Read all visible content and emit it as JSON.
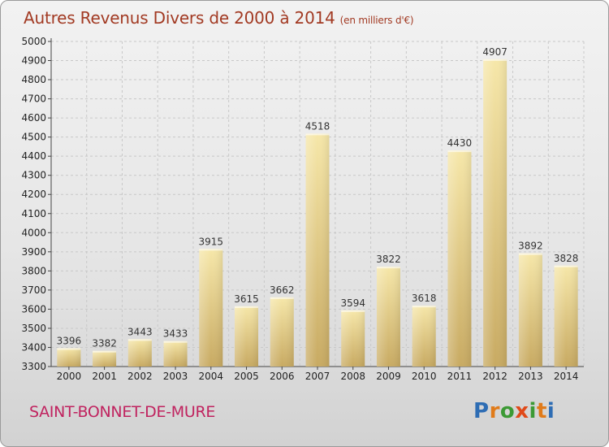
{
  "title": "Autres Revenus Divers de 2000 à 2014",
  "title_unit": "(en milliers d'€)",
  "commune": "SAINT-BONNET-DE-MURE",
  "brand": {
    "text": "Proxiti",
    "colors": [
      "#2e6db4",
      "#e07b1a",
      "#3c9a35",
      "#e04a1a",
      "#3c9a35",
      "#e07b1a",
      "#2e6db4"
    ]
  },
  "colors": {
    "bar_light": "#f6e7a9",
    "bar_dark": "#c8aa62",
    "title": "#a23a23",
    "commune": "#c0235f",
    "grid": "#c8c8c8"
  },
  "chart_data": {
    "type": "bar",
    "title": "Autres Revenus Divers de 2000 à 2014",
    "subtitle": "(en milliers d'€)",
    "xlabel": "",
    "ylabel": "",
    "categories": [
      "2000",
      "2001",
      "2002",
      "2003",
      "2004",
      "2005",
      "2006",
      "2007",
      "2008",
      "2009",
      "2010",
      "2011",
      "2012",
      "2013",
      "2014"
    ],
    "values": [
      3396,
      3382,
      3443,
      3433,
      3915,
      3615,
      3662,
      4518,
      3594,
      3822,
      3618,
      4430,
      4907,
      3892,
      3828
    ],
    "ylim": [
      3300,
      5000
    ],
    "yticks": [
      3300,
      3400,
      3500,
      3600,
      3700,
      3800,
      3900,
      4000,
      4100,
      4200,
      4300,
      4400,
      4500,
      4600,
      4700,
      4800,
      4900,
      5000
    ],
    "grid": true,
    "legend": "none"
  }
}
